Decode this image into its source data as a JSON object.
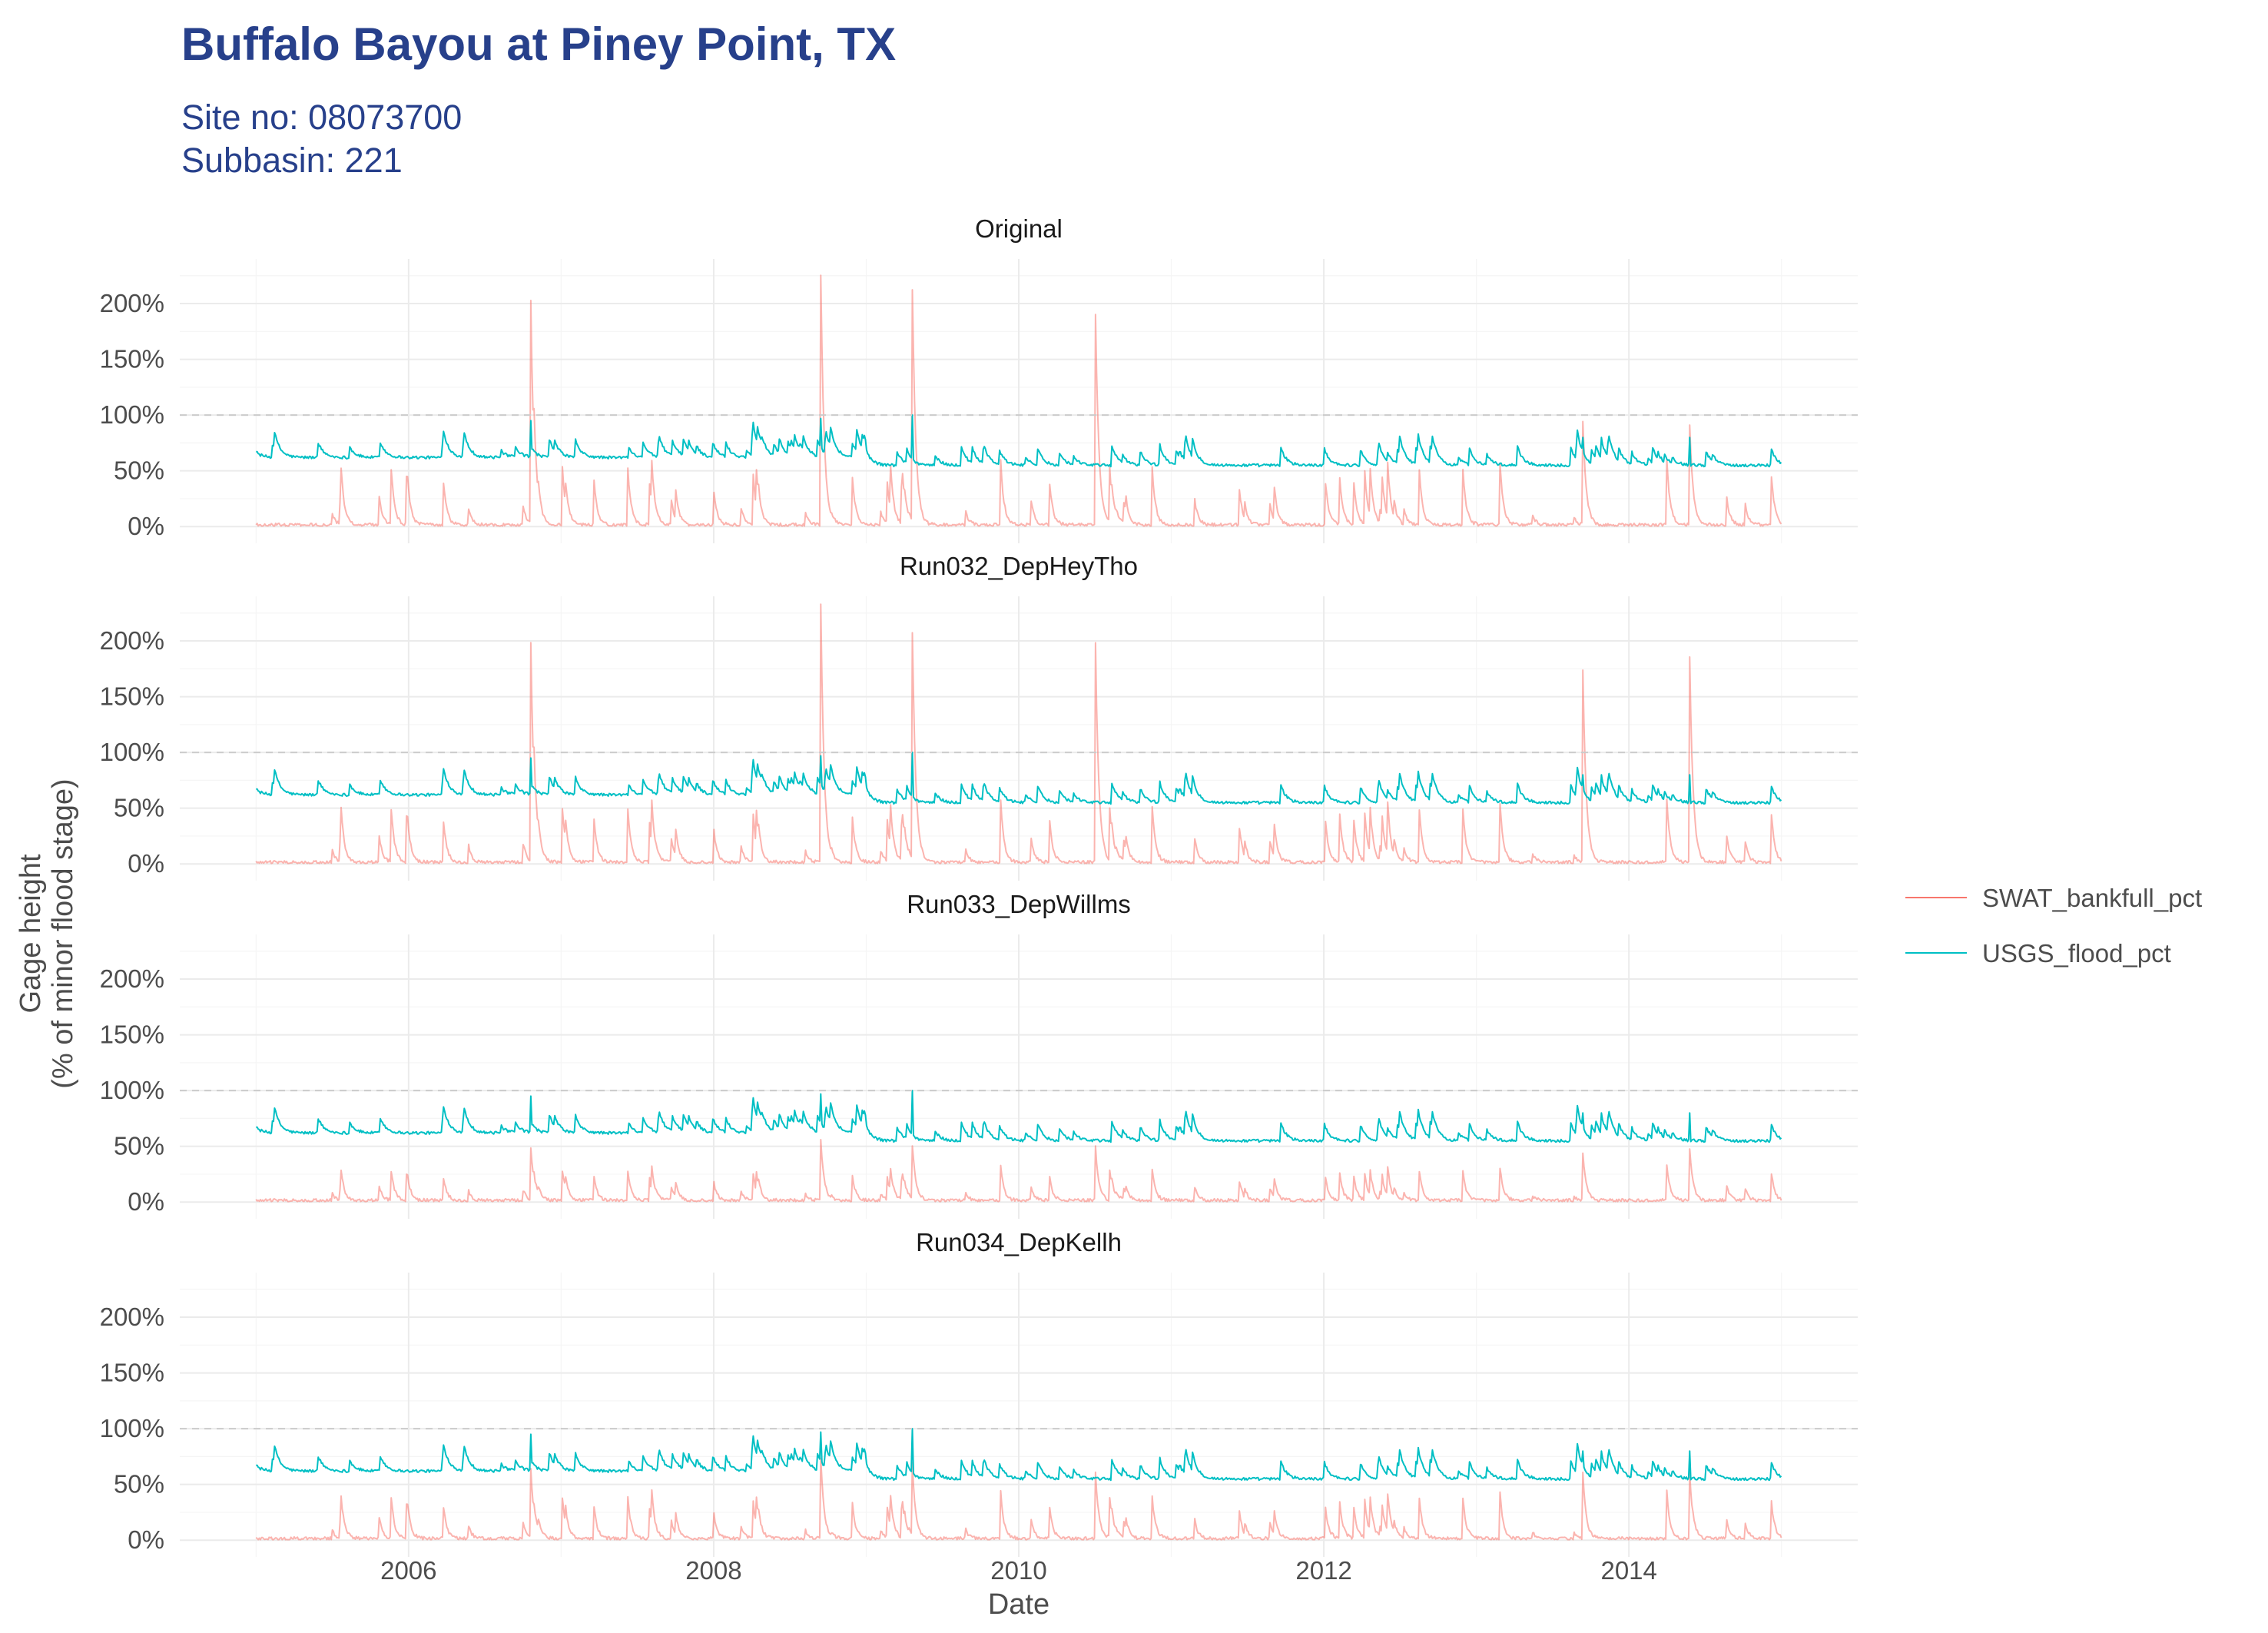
{
  "title": "Buffalo Bayou at Piney Point, TX",
  "subtitle_line1": "Site no: 08073700",
  "subtitle_line2": "Subbasin: 221",
  "xlabel": "Date",
  "ylabel_line1": "Gage height",
  "ylabel_line2": "(% of minor flood stage)",
  "legend": [
    {
      "label": "SWAT_bankfull_pct",
      "color": "#F8766D"
    },
    {
      "label": "USGS_flood_pct",
      "color": "#00BFC4"
    }
  ],
  "chart_data": {
    "type": "line",
    "facets": [
      "Original",
      "Run032_DepHeyTho",
      "Run033_DepWillms",
      "Run034_DepKellh"
    ],
    "x_range": [
      "2005-01-01",
      "2014-12-31"
    ],
    "xlim": [
      2004.5,
      2015.5
    ],
    "x_ticks": [
      2006,
      2008,
      2010,
      2012,
      2014
    ],
    "x_tick_labels": [
      "2006",
      "2008",
      "2010",
      "2012",
      "2014"
    ],
    "ylim": [
      -15,
      240
    ],
    "y_ticks": [
      0,
      50,
      100,
      150,
      200
    ],
    "y_tick_labels": [
      "0%",
      "50%",
      "100%",
      "150%",
      "200%"
    ],
    "reference_line": 100,
    "grid": true,
    "legend_position": "right",
    "series_note": "Approximate daily series 2005–2014; representative peaks listed per facet",
    "usgs_flood_pct": {
      "baseline_2005_2008": 62,
      "baseline_2009_2014": 55,
      "typical_range": [
        52,
        85
      ],
      "peaks": [
        {
          "x": 2006.8,
          "y": 95
        },
        {
          "x": 2008.7,
          "y": 97
        },
        {
          "x": 2009.3,
          "y": 100
        },
        {
          "x": 2013.7,
          "y": 80
        },
        {
          "x": 2014.4,
          "y": 80
        }
      ]
    },
    "swat_bankfull_pct_peaks": {
      "Original": [
        {
          "x": 2006.8,
          "y": 200
        },
        {
          "x": 2008.7,
          "y": 223
        },
        {
          "x": 2009.3,
          "y": 212
        },
        {
          "x": 2010.5,
          "y": 190
        },
        {
          "x": 2013.7,
          "y": 92
        },
        {
          "x": 2014.4,
          "y": 90
        }
      ],
      "Run032_DepHeyTho": [
        {
          "x": 2006.8,
          "y": 198
        },
        {
          "x": 2008.7,
          "y": 232
        },
        {
          "x": 2009.3,
          "y": 207
        },
        {
          "x": 2010.5,
          "y": 196
        },
        {
          "x": 2013.7,
          "y": 173
        },
        {
          "x": 2014.4,
          "y": 183
        }
      ],
      "Run033_DepWillms": [
        {
          "x": 2006.8,
          "y": 48
        },
        {
          "x": 2008.7,
          "y": 55
        },
        {
          "x": 2009.3,
          "y": 50
        },
        {
          "x": 2010.5,
          "y": 48
        },
        {
          "x": 2013.7,
          "y": 43
        },
        {
          "x": 2014.4,
          "y": 45
        }
      ],
      "Run034_DepKellh": [
        {
          "x": 2006.8,
          "y": 62
        },
        {
          "x": 2008.7,
          "y": 72
        },
        {
          "x": 2009.3,
          "y": 68
        },
        {
          "x": 2010.5,
          "y": 60
        },
        {
          "x": 2013.7,
          "y": 58
        },
        {
          "x": 2014.4,
          "y": 60
        }
      ]
    },
    "swat_peak_scale": {
      "Original": 0.75,
      "Run032_DepHeyTho": 0.72,
      "Run033_DepWillms": 0.4,
      "Run034_DepKellh": 0.55
    }
  }
}
